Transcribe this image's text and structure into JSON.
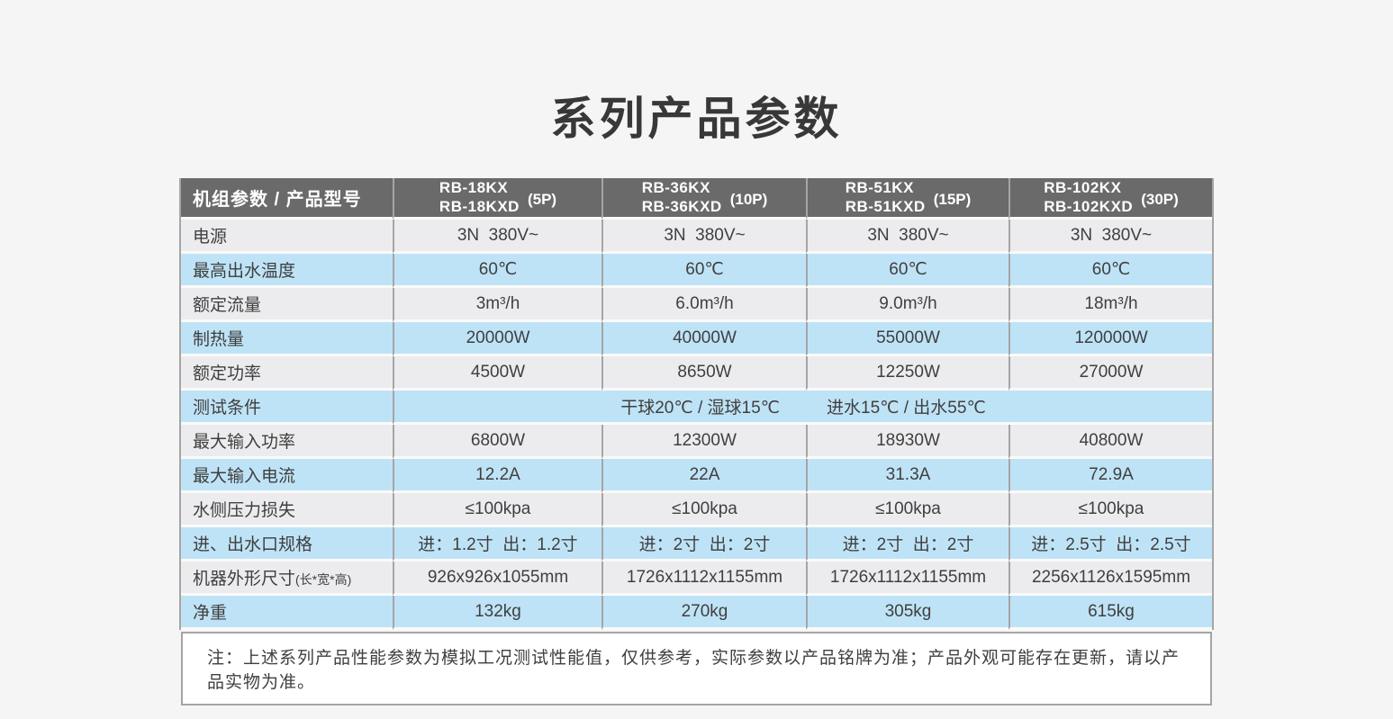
{
  "page": {
    "title": "系列产品参数"
  },
  "table": {
    "header": {
      "param_label": "机组参数 / 产品型号",
      "columns": [
        {
          "model1": "RB-18KX",
          "model2": "RB-18KXD",
          "power": "(5P)"
        },
        {
          "model1": "RB-36KX",
          "model2": "RB-36KXD",
          "power": "(10P)"
        },
        {
          "model1": "RB-51KX",
          "model2": "RB-51KXD",
          "power": "(15P)"
        },
        {
          "model1": "RB-102KX",
          "model2": "RB-102KXD",
          "power": "(30P)"
        }
      ]
    },
    "rows": [
      {
        "label": "电源",
        "tint": false,
        "values": [
          "3N  380V~",
          "3N  380V~",
          "3N  380V~",
          "3N  380V~"
        ]
      },
      {
        "label": "最高出水温度",
        "tint": true,
        "values": [
          "60℃",
          "60℃",
          "60℃",
          "60℃"
        ]
      },
      {
        "label": "额定流量",
        "tint": false,
        "values": [
          "3m³/h",
          "6.0m³/h",
          "9.0m³/h",
          "18m³/h"
        ]
      },
      {
        "label": "制热量",
        "tint": true,
        "values": [
          "20000W",
          "40000W",
          "55000W",
          "120000W"
        ]
      },
      {
        "label": "额定功率",
        "tint": false,
        "values": [
          "4500W",
          "8650W",
          "12250W",
          "27000W"
        ]
      },
      {
        "label": "测试条件",
        "tint": true,
        "merged": true,
        "cond": [
          "干球20℃ / 湿球15℃",
          "进水15℃ / 出水55℃"
        ]
      },
      {
        "label": "最大输入功率",
        "tint": false,
        "values": [
          "6800W",
          "12300W",
          "18930W",
          "40800W"
        ]
      },
      {
        "label": "最大输入电流",
        "tint": true,
        "values": [
          "12.2A",
          "22A",
          "31.3A",
          "72.9A"
        ]
      },
      {
        "label": "水侧压力损失",
        "tint": false,
        "values": [
          "≤100kpa",
          "≤100kpa",
          "≤100kpa",
          "≤100kpa"
        ]
      },
      {
        "label": "进、出水口规格",
        "tint": true,
        "values": [
          "进：1.2寸  出：1.2寸",
          "进：2寸  出：2寸",
          "进：2寸  出：2寸",
          "进：2.5寸  出：2.5寸"
        ]
      },
      {
        "label": "机器外形尺寸",
        "label_suffix": "(长*宽*高)",
        "tint": false,
        "values": [
          "926x926x1055mm",
          "1726x1112x1155mm",
          "1726x1112x1155mm",
          "2256x1126x1595mm"
        ]
      },
      {
        "label": "净重",
        "tint": true,
        "values": [
          "132kg",
          "270kg",
          "305kg",
          "615kg"
        ]
      }
    ],
    "note": "注：上述系列产品性能参数为模拟工况测试性能值，仅供参考，实际参数以产品铭牌为准；产品外观可能存在更新，请以产品实物为准。"
  },
  "colors": {
    "header_bg": "#6a6a6a",
    "row_tint": "#bfe3f6",
    "row_plain": "#ececee",
    "border": "#a5a5a5",
    "row_gap": "#fafafa",
    "page_bg": "#f5f5f5",
    "note_bg": "#ffffff",
    "text": "#3f3f3f",
    "header_text": "#ffffff"
  }
}
